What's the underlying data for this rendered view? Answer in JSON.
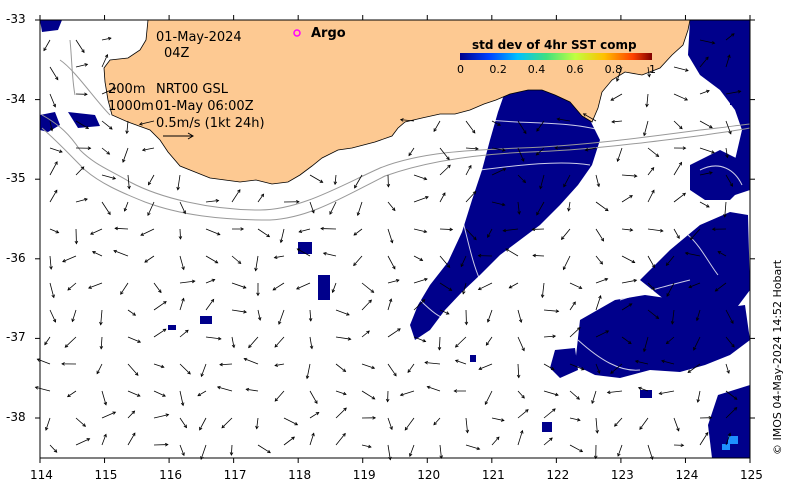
{
  "map": {
    "date": "01-May-2024",
    "hour": "04Z",
    "depth_line1": "200m",
    "depth_line2": "1000m",
    "source_line1": "NRT00 GSL",
    "source_line2": "01-May 06:00Z",
    "scale_label": "0.5m/s (1kt 24h)",
    "argo_label": "Argo",
    "colorbar_title": "std dev of 4hr SST comp",
    "colorbar_ticks": [
      "0",
      "0.2",
      "0.4",
      "0.6",
      "0.8",
      "1"
    ],
    "credit": "© IMOS 04-May-2024 14:52 Hobart",
    "x_ticks": [
      "114",
      "115",
      "116",
      "117",
      "118",
      "119",
      "120",
      "121",
      "122",
      "123",
      "124",
      "125"
    ],
    "y_ticks": [
      "-33",
      "-34",
      "-35",
      "-36",
      "-37",
      "-38"
    ],
    "colors": {
      "land": "#fdc992",
      "sst_patch": "#00008b",
      "sst_high": "#1e90ff",
      "argo_marker": "#ff00ff",
      "isobath": "#999999"
    }
  }
}
